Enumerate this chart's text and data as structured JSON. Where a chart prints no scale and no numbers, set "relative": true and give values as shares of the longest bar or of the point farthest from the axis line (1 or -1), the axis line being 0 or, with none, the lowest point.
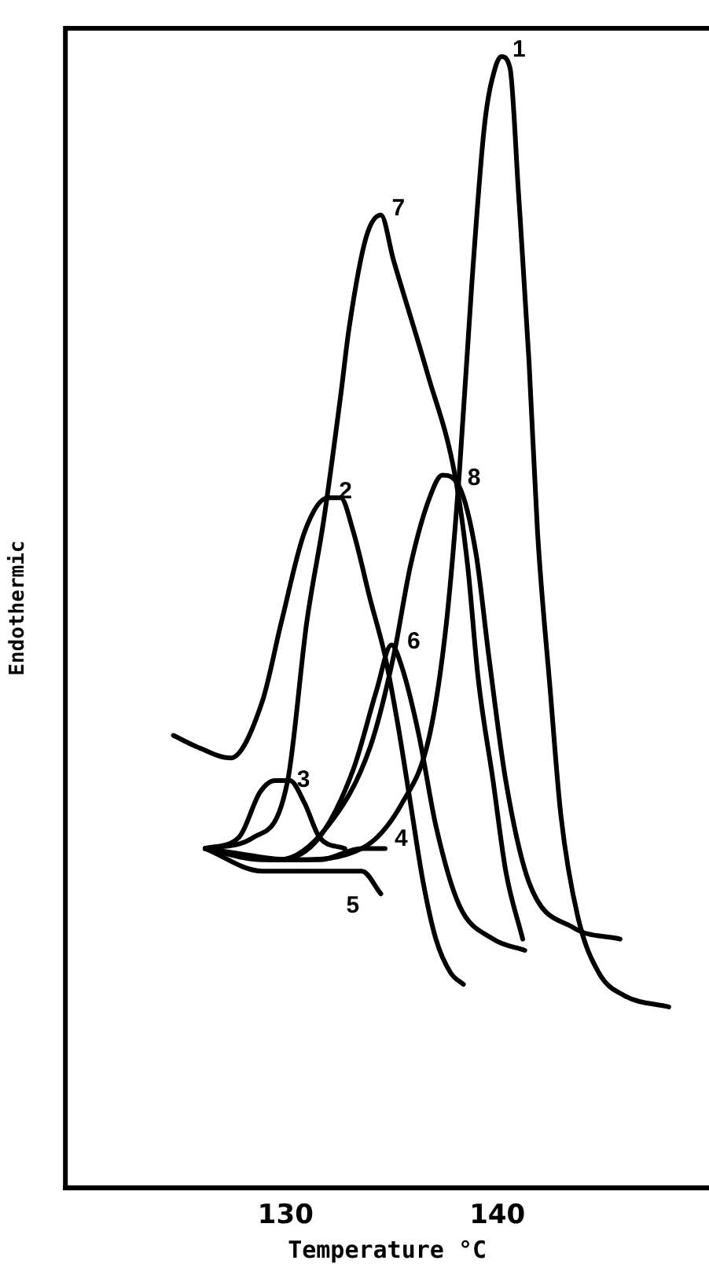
{
  "chart_data": {
    "type": "line",
    "relative": true,
    "xlabel": "Temperature °C",
    "ylabel": "Endothermic",
    "xlim": [
      119.6,
      150
    ],
    "xticks": [
      130,
      140
    ],
    "grid": false,
    "legend": false,
    "tick_labels": "x",
    "marker": "none",
    "line_style": "solid",
    "series": [
      {
        "name": "1",
        "color": "#000000",
        "x": [
          126.2,
          130.5,
          133.6,
          135.5,
          136.8,
          137.6,
          138.2,
          138.8,
          139.4,
          139.9,
          140.2,
          140.6,
          141.0,
          141.5,
          141.9,
          142.5,
          143.0,
          143.8,
          144.8,
          146.0,
          148.1
        ],
        "values": [
          0.3,
          0.29,
          0.3,
          0.34,
          0.4,
          0.5,
          0.63,
          0.8,
          0.94,
          0.99,
          1,
          0.99,
          0.88,
          0.73,
          0.58,
          0.44,
          0.33,
          0.24,
          0.19,
          0.17,
          0.16
        ]
      },
      {
        "name": "2",
        "color": "#000000",
        "x": [
          124.7,
          125.8,
          127.4,
          128.9,
          129.8,
          130.9,
          132.0,
          132.6,
          133.2,
          134.0,
          134.7,
          135.3,
          135.9,
          136.5,
          137.1,
          137.8,
          138.4
        ],
        "values": [
          0.4,
          0.39,
          0.38,
          0.43,
          0.5,
          0.58,
          0.61,
          0.61,
          0.58,
          0.52,
          0.47,
          0.41,
          0.34,
          0.27,
          0.22,
          0.19,
          0.18
        ]
      },
      {
        "name": "3",
        "color": "#000000",
        "x": [
          126.2,
          127.8,
          128.8,
          129.5,
          130.2,
          130.9,
          131.6,
          132.8
        ],
        "values": [
          0.3,
          0.31,
          0.35,
          0.36,
          0.36,
          0.34,
          0.31,
          0.3
        ]
      },
      {
        "name": "4",
        "color": "#000000",
        "x": [
          126.2,
          128.9,
          131.6,
          133.6,
          134.7
        ],
        "values": [
          0.3,
          0.29,
          0.29,
          0.3,
          0.3
        ]
      },
      {
        "name": "5",
        "color": "#000000",
        "x": [
          126.2,
          128.9,
          131.6,
          133.6,
          134.5
        ],
        "values": [
          0.3,
          0.28,
          0.28,
          0.28,
          0.26
        ]
      },
      {
        "name": "6",
        "color": "#000000",
        "x": [
          126.2,
          129.7,
          131.6,
          133.2,
          134.3,
          135.0,
          135.5,
          136.3,
          137.1,
          138.2,
          139.8,
          141.3
        ],
        "values": [
          0.3,
          0.29,
          0.31,
          0.37,
          0.44,
          0.48,
          0.46,
          0.4,
          0.32,
          0.25,
          0.22,
          0.21
        ]
      },
      {
        "name": "7",
        "color": "#000000",
        "x": [
          126.2,
          128.5,
          130.1,
          131.0,
          131.8,
          132.6,
          133.0,
          133.8,
          134.5,
          135.1,
          136.7,
          138.0,
          138.6,
          139.1,
          139.8,
          140.4,
          141.2
        ],
        "values": [
          0.3,
          0.31,
          0.36,
          0.5,
          0.59,
          0.7,
          0.76,
          0.84,
          0.86,
          0.82,
          0.72,
          0.63,
          0.55,
          0.45,
          0.36,
          0.28,
          0.22
        ]
      },
      {
        "name": "8",
        "color": "#000000",
        "x": [
          126.2,
          129.7,
          132.0,
          134.0,
          135.1,
          135.9,
          136.8,
          137.4,
          138.2,
          139.0,
          139.6,
          140.4,
          141.5,
          143.6,
          145.8
        ],
        "values": [
          0.3,
          0.29,
          0.32,
          0.39,
          0.47,
          0.55,
          0.61,
          0.63,
          0.62,
          0.56,
          0.47,
          0.36,
          0.27,
          0.23,
          0.22
        ]
      }
    ]
  }
}
